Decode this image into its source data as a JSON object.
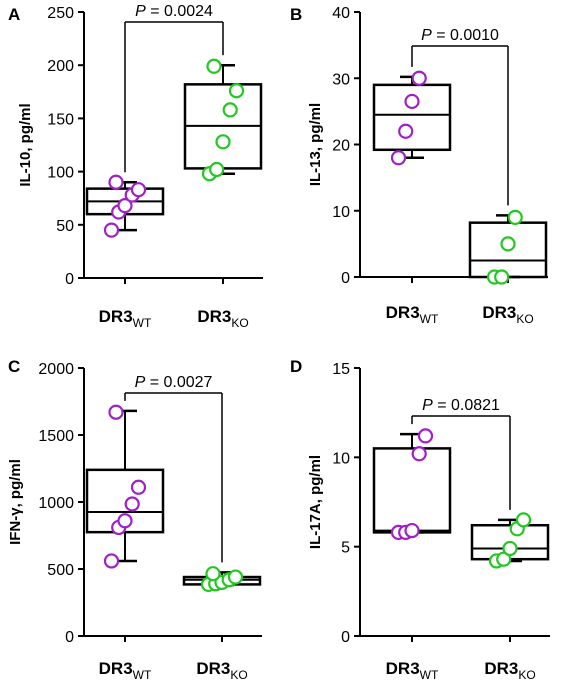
{
  "chart_data": [
    {
      "panel": "A",
      "type": "box",
      "ylabel": "IL-10, pg/ml",
      "ylim": [
        0,
        250
      ],
      "yticks": [
        "0",
        "50",
        "100",
        "150",
        "200",
        "250"
      ],
      "categories": [
        {
          "main": "DR3",
          "sub": "WT"
        },
        {
          "main": "DR3",
          "sub": "KO"
        }
      ],
      "series": [
        {
          "name": "DR3WT",
          "color": "#a020c8",
          "min": 45,
          "q1": 60,
          "median": 72,
          "q3": 84,
          "max": 90,
          "points": [
            45,
            62,
            68,
            78,
            83,
            90
          ]
        },
        {
          "name": "DR3KO",
          "color": "#22c722",
          "min": 98,
          "q1": 103,
          "median": 143,
          "q3": 182,
          "max": 200,
          "points": [
            98,
            102,
            128,
            158,
            176,
            199
          ]
        }
      ],
      "annotation": {
        "prefix": "P",
        "value": "= 0.0024"
      }
    },
    {
      "panel": "B",
      "type": "box",
      "ylabel": "IL-13, pg/ml",
      "ylim": [
        0,
        40
      ],
      "yticks": [
        "0",
        "10",
        "20",
        "30",
        "40"
      ],
      "categories": [
        {
          "main": "DR3",
          "sub": "WT"
        },
        {
          "main": "DR3",
          "sub": "KO"
        }
      ],
      "series": [
        {
          "name": "DR3WT",
          "color": "#a020c8",
          "min": 18,
          "q1": 19.2,
          "median": 24.5,
          "q3": 29,
          "max": 30.2,
          "points": [
            18,
            22,
            26.5,
            30
          ]
        },
        {
          "name": "DR3KO",
          "color": "#22c722",
          "min": 0,
          "q1": 0,
          "median": 2.5,
          "q3": 8.2,
          "max": 9.3,
          "points": [
            0,
            0,
            5,
            9
          ]
        }
      ],
      "annotation": {
        "prefix": "P",
        "value": "= 0.0010"
      }
    },
    {
      "panel": "C",
      "type": "box",
      "ylabel": "IFN-γ, pg/ml",
      "ylim": [
        0,
        2000
      ],
      "yticks": [
        "0",
        "500",
        "1000",
        "1500",
        "2000"
      ],
      "categories": [
        {
          "main": "DR3",
          "sub": "WT"
        },
        {
          "main": "DR3",
          "sub": "KO"
        }
      ],
      "series": [
        {
          "name": "DR3WT",
          "color": "#a020c8",
          "min": 560,
          "q1": 775,
          "median": 925,
          "q3": 1240,
          "max": 1680,
          "points": [
            560,
            810,
            860,
            985,
            1110,
            1670
          ]
        },
        {
          "name": "DR3KO",
          "color": "#22c722",
          "min": 380,
          "q1": 385,
          "median": 420,
          "q3": 440,
          "max": 475,
          "points": [
            385,
            390,
            400,
            420,
            440,
            465
          ]
        }
      ],
      "annotation": {
        "prefix": "P",
        "value": "= 0.0027"
      }
    },
    {
      "panel": "D",
      "type": "box",
      "ylabel": "IL-17A, pg/ml",
      "ylim": [
        0,
        15
      ],
      "yticks": [
        "0",
        "5",
        "10",
        "15"
      ],
      "categories": [
        {
          "main": "DR3",
          "sub": "WT"
        },
        {
          "main": "DR3",
          "sub": "KO"
        }
      ],
      "series": [
        {
          "name": "DR3WT",
          "color": "#a020c8",
          "min": 5.8,
          "q1": 5.8,
          "median": 5.9,
          "q3": 10.5,
          "max": 11.3,
          "points": [
            5.8,
            5.8,
            5.9,
            10.2,
            11.2
          ]
        },
        {
          "name": "DR3KO",
          "color": "#22c722",
          "min": 4.2,
          "q1": 4.3,
          "median": 4.9,
          "q3": 6.2,
          "max": 6.5,
          "points": [
            4.2,
            4.3,
            4.9,
            6.0,
            6.5
          ]
        }
      ],
      "annotation": {
        "prefix": "P",
        "value": "= 0.0821"
      }
    }
  ]
}
